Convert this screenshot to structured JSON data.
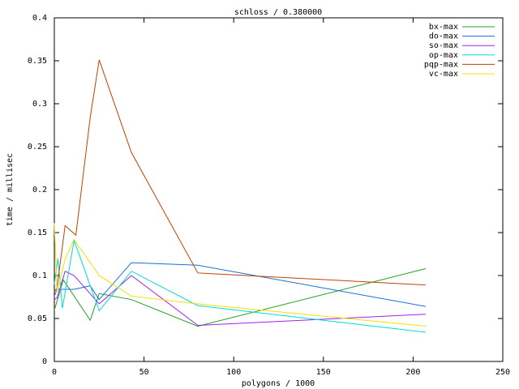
{
  "chart_data": {
    "type": "line",
    "title": "schloss / 0.380000",
    "x_label": "polygons / 1000",
    "y_label": "time / millisec",
    "xlim": [
      0,
      250
    ],
    "xticks": [
      0,
      50,
      100,
      150,
      200,
      250
    ],
    "ylim": [
      0,
      0.4
    ],
    "yticks": [
      0,
      0.05,
      0.1,
      0.15,
      0.2,
      0.25,
      0.3,
      0.35,
      0.4
    ],
    "legend": "top-right",
    "series": [
      {
        "name": "bx-max",
        "color": "#22a022",
        "x": [
          0,
          1.5,
          5,
          20,
          25,
          43,
          80,
          207
        ],
        "values": [
          0.06,
          0.07,
          0.095,
          0.048,
          0.079,
          0.072,
          0.041,
          0.108
        ]
      },
      {
        "name": "do-max",
        "color": "#1a6ed8",
        "x": [
          0,
          1.5,
          11,
          20,
          25,
          43,
          80,
          207
        ],
        "values": [
          0.076,
          0.084,
          0.084,
          0.088,
          0.072,
          0.115,
          0.112,
          0.064
        ]
      },
      {
        "name": "so-max",
        "color": "#a020f0",
        "x": [
          0,
          1.5,
          6,
          11,
          25,
          43,
          80,
          207
        ],
        "values": [
          0.072,
          0.074,
          0.105,
          0.1,
          0.067,
          0.1,
          0.042,
          0.055
        ]
      },
      {
        "name": "op-max",
        "color": "#00d8d8",
        "x": [
          0,
          2,
          4.5,
          11,
          25,
          43,
          80,
          207
        ],
        "values": [
          0.09,
          0.12,
          0.062,
          0.141,
          0.059,
          0.105,
          0.065,
          0.034
        ]
      },
      {
        "name": "pqp-max",
        "color": "#c04000",
        "x": [
          0,
          1.5,
          6,
          12,
          20,
          25,
          43,
          80,
          207
        ],
        "values": [
          0.081,
          0.086,
          0.158,
          0.147,
          0.284,
          0.351,
          0.243,
          0.103,
          0.089
        ]
      },
      {
        "name": "vc-max",
        "color": "#f0e000",
        "x": [
          0,
          1.5,
          6,
          11,
          25,
          43,
          80,
          207
        ],
        "values": [
          0.161,
          0.081,
          0.119,
          0.142,
          0.1,
          0.076,
          0.067,
          0.041
        ]
      }
    ]
  }
}
